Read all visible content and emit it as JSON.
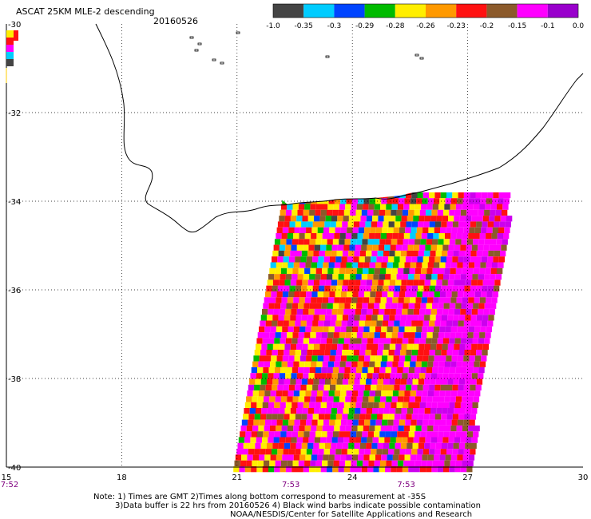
{
  "header": {
    "title": "ASCAT 25KM MLE-2 descending",
    "date": "20160526"
  },
  "colorbar": {
    "colors": [
      "#444444",
      "#00ccff",
      "#0044ff",
      "#00bb00",
      "#ffee00",
      "#ff9900",
      "#ff1111",
      "#8b5a2b",
      "#ff00ff",
      "#9900cc"
    ],
    "labels": [
      "-1.0",
      "-0.35",
      "-0.3",
      "-0.29",
      "-0.28",
      "-0.26",
      "-0.23",
      "-0.2",
      "-0.15",
      "-0.1",
      "0.0"
    ]
  },
  "chart_data": {
    "type": "heatmap",
    "title": "ASCAT 25KM MLE-2 descending",
    "xlim": [
      15,
      30
    ],
    "ylim": [
      -40,
      -30
    ],
    "x_ticks": [
      "15",
      "18",
      "21",
      "24",
      "27",
      "30"
    ],
    "y_ticks": [
      "-30",
      "-32",
      "-34",
      "-36",
      "-38",
      "-40"
    ],
    "time_labels": [
      {
        "lon": 15,
        "text": "7:52"
      },
      {
        "lon": 22.4,
        "text": "7:53"
      },
      {
        "lon": 25.4,
        "text": "7:53"
      }
    ],
    "grid": true,
    "swath": {
      "lat_top_north": -33.8,
      "lat_bottom": -40,
      "west_edge_lon_at_top": 22.2,
      "west_edge_lon_at_bottom": 20.9,
      "east_edge_lon_at_top": 28.1,
      "east_edge_lon_at_bottom": 27.0
    }
  },
  "notes": {
    "line1": "Note: 1) Times are GMT 2)Times along bottom correspond to measurement at -35S",
    "line2": "3)Data buffer is 22 hrs from 20160526 4) Black wind barbs indicate possible contamination",
    "line3": "NOAA/NESDIS/Center for Satellite Applications and Research"
  }
}
